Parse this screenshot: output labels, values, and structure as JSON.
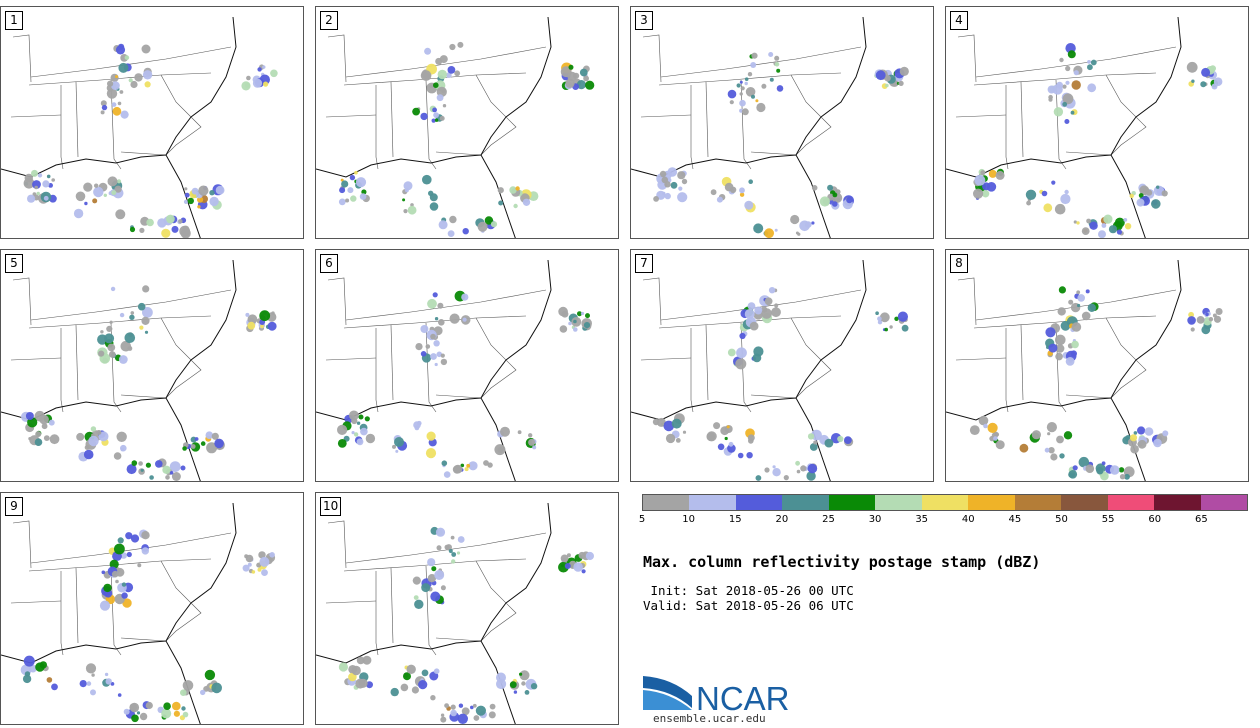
{
  "panels": [
    {
      "label": "1"
    },
    {
      "label": "2"
    },
    {
      "label": "3"
    },
    {
      "label": "4"
    },
    {
      "label": "5"
    },
    {
      "label": "6"
    },
    {
      "label": "7"
    },
    {
      "label": "8"
    },
    {
      "label": "9"
    },
    {
      "label": "10"
    }
  ],
  "colorbar": {
    "ticks": [
      "5",
      "10",
      "15",
      "20",
      "25",
      "30",
      "35",
      "40",
      "45",
      "50",
      "55",
      "60",
      "65"
    ],
    "colors": [
      "#a4a4a4",
      "#b4bdec",
      "#545cdb",
      "#4c9094",
      "#0a8a06",
      "#b4dcb4",
      "#efe063",
      "#efb328",
      "#b47d37",
      "#88573d",
      "#ef4d78",
      "#6e1530",
      "#b04ca4"
    ]
  },
  "title": "Max. column reflectivity postage stamp (dBZ)",
  "init": " Init: Sat 2018-05-26 00 UTC",
  "valid": "Valid: Sat 2018-05-26 06 UTC",
  "logo": {
    "text": "NCAR",
    "url": "ensemble.ucar.edu",
    "color": "#1a5fa3"
  }
}
